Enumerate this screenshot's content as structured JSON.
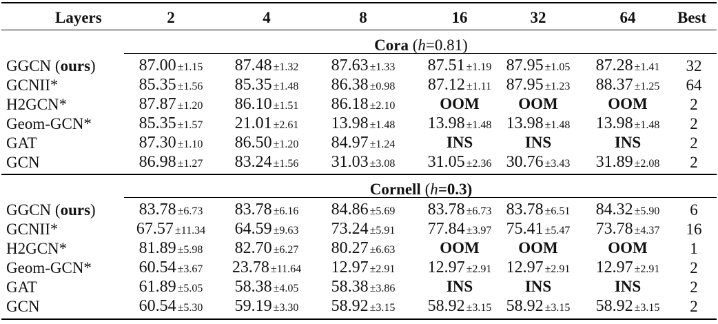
{
  "header": {
    "layers_label": "Layers",
    "columns": [
      "2",
      "4",
      "8",
      "16",
      "32",
      "64"
    ],
    "best_label": "Best"
  },
  "sections": [
    {
      "dataset": "Cora",
      "h_label": "h",
      "h_value": "=0.81",
      "rows": [
        {
          "model": "GGCN",
          "suffix": "ours",
          "cells": [
            "87.00±1.15",
            "87.48±1.32",
            "87.63±1.33",
            "87.51±1.19",
            "87.95±1.05",
            "87.28±1.41"
          ],
          "best": "32"
        },
        {
          "model": "GCNII*",
          "suffix": "",
          "cells": [
            "85.35±1.56",
            "85.35±1.48",
            "86.38±0.98",
            "87.12±1.11",
            "87.95±1.23",
            "88.37±1.25"
          ],
          "best": "64"
        },
        {
          "model": "H2GCN*",
          "suffix": "",
          "cells": [
            "87.87±1.20",
            "86.10±1.51",
            "86.18±2.10",
            "OOM",
            "OOM",
            "OOM"
          ],
          "best": "2"
        },
        {
          "model": "Geom-GCN*",
          "suffix": "",
          "cells": [
            "85.35±1.57",
            "21.01±2.61",
            "13.98±1.48",
            "13.98±1.48",
            "13.98±1.48",
            "13.98±1.48"
          ],
          "best": "2"
        },
        {
          "model": "GAT",
          "suffix": "",
          "cells": [
            "87.30±1.10",
            "86.50±1.20",
            "84.97±1.24",
            "INS",
            "INS",
            "INS"
          ],
          "best": "2"
        },
        {
          "model": "GCN",
          "suffix": "",
          "cells": [
            "86.98±1.27",
            "83.24±1.56",
            "31.03±3.08",
            "31.05±2.36",
            "30.76±3.43",
            "31.89±2.08"
          ],
          "best": "2"
        }
      ]
    },
    {
      "dataset": "Cornell",
      "h_label": "h",
      "h_value": "=0.3",
      "rows": [
        {
          "model": "GGCN",
          "suffix": "ours",
          "cells": [
            "83.78±6.73",
            "83.78±6.16",
            "84.86±5.69",
            "83.78±6.73",
            "83.78±6.51",
            "84.32±5.90"
          ],
          "best": "6"
        },
        {
          "model": "GCNII*",
          "suffix": "",
          "cells": [
            "67.57±11.34",
            "64.59±9.63",
            "73.24±5.91",
            "77.84±3.97",
            "75.41±5.47",
            "73.78±4.37"
          ],
          "best": "16"
        },
        {
          "model": "H2GCN*",
          "suffix": "",
          "cells": [
            "81.89±5.98",
            "82.70±6.27",
            "80.27±6.63",
            "OOM",
            "OOM",
            "OOM"
          ],
          "best": "1"
        },
        {
          "model": "Geom-GCN*",
          "suffix": "",
          "cells": [
            "60.54±3.67",
            "23.78±11.64",
            "12.97±2.91",
            "12.97±2.91",
            "12.97±2.91",
            "12.97±2.91"
          ],
          "best": "2"
        },
        {
          "model": "GAT",
          "suffix": "",
          "cells": [
            "61.89±5.05",
            "58.38±4.05",
            "58.38±3.86",
            "INS",
            "INS",
            "INS"
          ],
          "best": "2"
        },
        {
          "model": "GCN",
          "suffix": "",
          "cells": [
            "60.54±5.30",
            "59.19±3.30",
            "58.92±3.15",
            "58.92±3.15",
            "58.92±3.15",
            "58.92±3.15"
          ],
          "best": "2"
        }
      ]
    }
  ]
}
